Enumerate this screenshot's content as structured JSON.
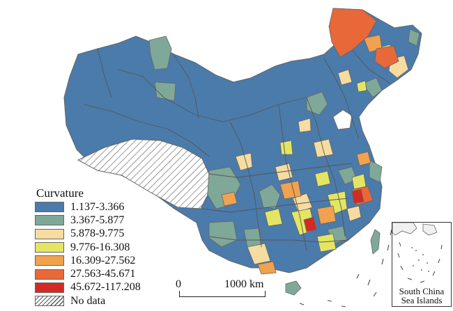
{
  "legend": {
    "title": "Curvature",
    "classes": [
      {
        "label": "1.137-3.366",
        "color": "#4a7bab"
      },
      {
        "label": "3.367-5.877",
        "color": "#7fa898"
      },
      {
        "label": "5.878-9.775",
        "color": "#f6dca0"
      },
      {
        "label": "9.776-16.308",
        "color": "#e4e663"
      },
      {
        "label": "16.309-27.562",
        "color": "#f0a24e"
      },
      {
        "label": "27.563-45.671",
        "color": "#e8683a"
      },
      {
        "label": "45.672-117.208",
        "color": "#d42a24"
      }
    ],
    "no_data_label": "No data"
  },
  "scale_bar": {
    "zero_label": "0",
    "max_label": "1000 km"
  },
  "inset": {
    "label_line1": "South China",
    "label_line2": "Sea Islands"
  },
  "colors": {
    "boundary": "#666666",
    "no_data_hatch": "#555555"
  }
}
